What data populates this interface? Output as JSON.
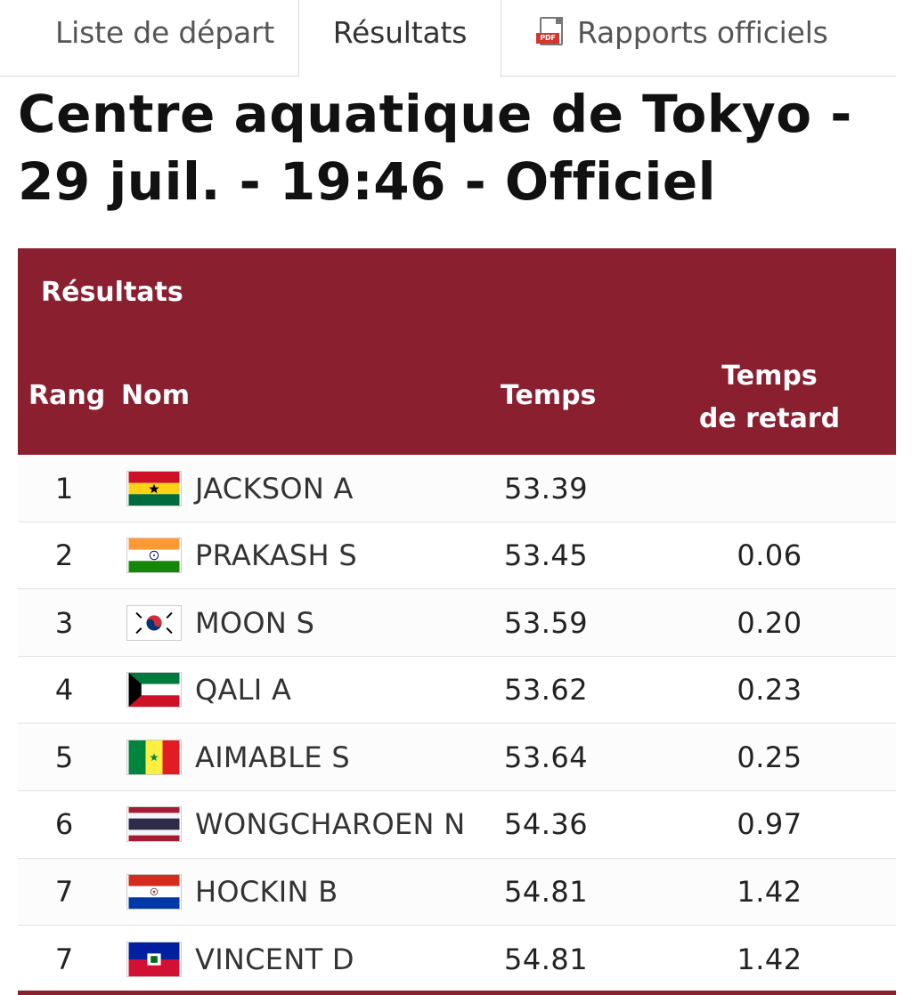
{
  "tabs": {
    "start_list": "Liste de départ",
    "results": "Résultats",
    "reports": "Rapports officiels",
    "reports_icon": "pdf-icon",
    "pdf_tag": "PDF"
  },
  "title": "Centre aquatique de Tokyo - 29 juil. - 19:46 - Officiel",
  "table": {
    "heading": "Résultats",
    "columns": {
      "rank": "Rang",
      "name": "Nom",
      "time": "Temps",
      "behind_line1": "Temps",
      "behind_line2": "de retard"
    },
    "header_color": "#8a1f30",
    "rows": [
      {
        "rank": "1",
        "flag": "ghana-flag",
        "name": "JACKSON A",
        "time": "53.39",
        "behind": ""
      },
      {
        "rank": "2",
        "flag": "india-flag",
        "name": "PRAKASH S",
        "time": "53.45",
        "behind": "0.06"
      },
      {
        "rank": "3",
        "flag": "south-korea-flag",
        "name": "MOON S",
        "time": "53.59",
        "behind": "0.20"
      },
      {
        "rank": "4",
        "flag": "kuwait-flag",
        "name": "QALI A",
        "time": "53.62",
        "behind": "0.23"
      },
      {
        "rank": "5",
        "flag": "senegal-flag",
        "name": "AIMABLE S",
        "time": "53.64",
        "behind": "0.25"
      },
      {
        "rank": "6",
        "flag": "thailand-flag",
        "name": "WONGCHAROEN N",
        "time": "54.36",
        "behind": "0.97"
      },
      {
        "rank": "7",
        "flag": "paraguay-flag",
        "name": "HOCKIN B",
        "time": "54.81",
        "behind": "1.42"
      },
      {
        "rank": "7",
        "flag": "haiti-flag",
        "name": "VINCENT D",
        "time": "54.81",
        "behind": "1.42"
      }
    ]
  }
}
